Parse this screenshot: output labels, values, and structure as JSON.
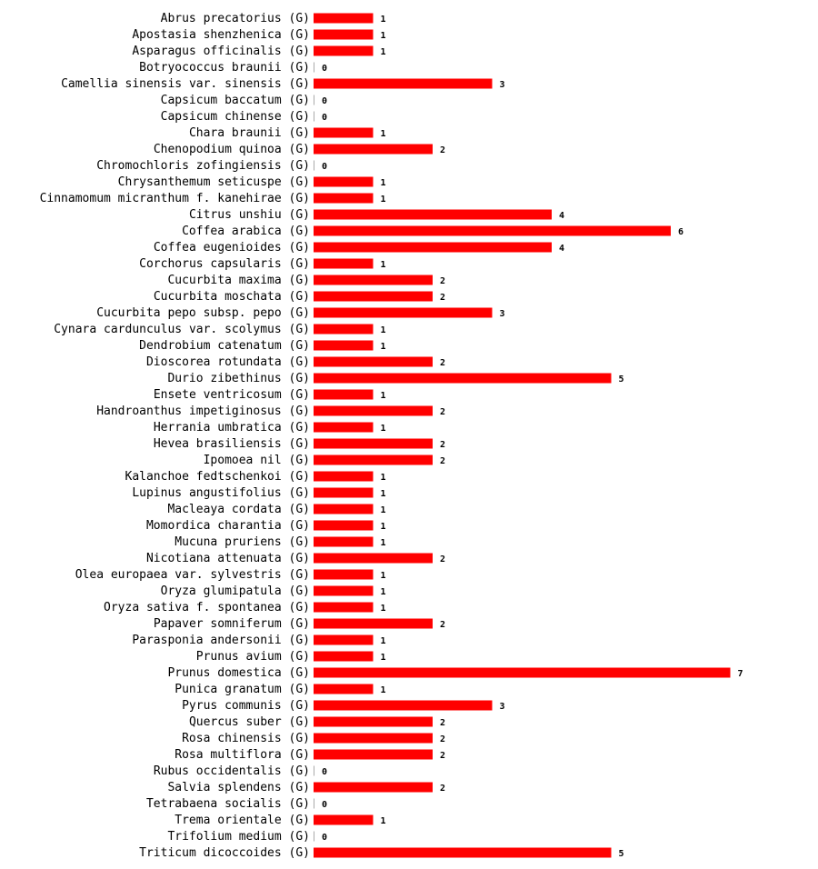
{
  "chart_data": {
    "type": "bar",
    "orientation": "horizontal",
    "title": "",
    "xlabel": "",
    "ylabel": "",
    "bar_color": "#ff0000",
    "grid": false,
    "legend": "none",
    "xlim": [
      0,
      7
    ],
    "categories": [
      "Abrus precatorius (G)",
      "Apostasia shenzhenica (G)",
      "Asparagus officinalis (G)",
      "Botryococcus braunii (G)",
      "Camellia sinensis var. sinensis (G)",
      "Capsicum baccatum (G)",
      "Capsicum chinense (G)",
      "Chara braunii (G)",
      "Chenopodium quinoa (G)",
      "Chromochloris zofingiensis (G)",
      "Chrysanthemum seticuspe (G)",
      "Cinnamomum micranthum f. kanehirae (G)",
      "Citrus unshiu (G)",
      "Coffea arabica (G)",
      "Coffea eugenioides (G)",
      "Corchorus capsularis (G)",
      "Cucurbita maxima (G)",
      "Cucurbita moschata (G)",
      "Cucurbita pepo subsp. pepo (G)",
      "Cynara cardunculus var. scolymus (G)",
      "Dendrobium catenatum (G)",
      "Dioscorea rotundata (G)",
      "Durio zibethinus (G)",
      "Ensete ventricosum (G)",
      "Handroanthus impetiginosus (G)",
      "Herrania umbratica (G)",
      "Hevea brasiliensis (G)",
      "Ipomoea nil (G)",
      "Kalanchoe fedtschenkoi (G)",
      "Lupinus angustifolius (G)",
      "Macleaya cordata (G)",
      "Momordica charantia (G)",
      "Mucuna pruriens (G)",
      "Nicotiana attenuata (G)",
      "Olea europaea var. sylvestris (G)",
      "Oryza glumipatula (G)",
      "Oryza sativa f. spontanea (G)",
      "Papaver somniferum (G)",
      "Parasponia andersonii (G)",
      "Prunus avium (G)",
      "Prunus domestica (G)",
      "Punica granatum (G)",
      "Pyrus communis (G)",
      "Quercus suber (G)",
      "Rosa chinensis (G)",
      "Rosa multiflora (G)",
      "Rubus occidentalis (G)",
      "Salvia splendens (G)",
      "Tetrabaena socialis (G)",
      "Trema orientale (G)",
      "Trifolium medium (G)",
      "Triticum dicoccoides (G)"
    ],
    "values": [
      1,
      1,
      1,
      0,
      3,
      0,
      0,
      1,
      2,
      0,
      1,
      1,
      4,
      6,
      4,
      1,
      2,
      2,
      3,
      1,
      1,
      2,
      5,
      1,
      2,
      1,
      2,
      2,
      1,
      1,
      1,
      1,
      1,
      2,
      1,
      1,
      1,
      2,
      1,
      1,
      7,
      1,
      3,
      2,
      2,
      2,
      0,
      2,
      0,
      1,
      0,
      5
    ]
  }
}
